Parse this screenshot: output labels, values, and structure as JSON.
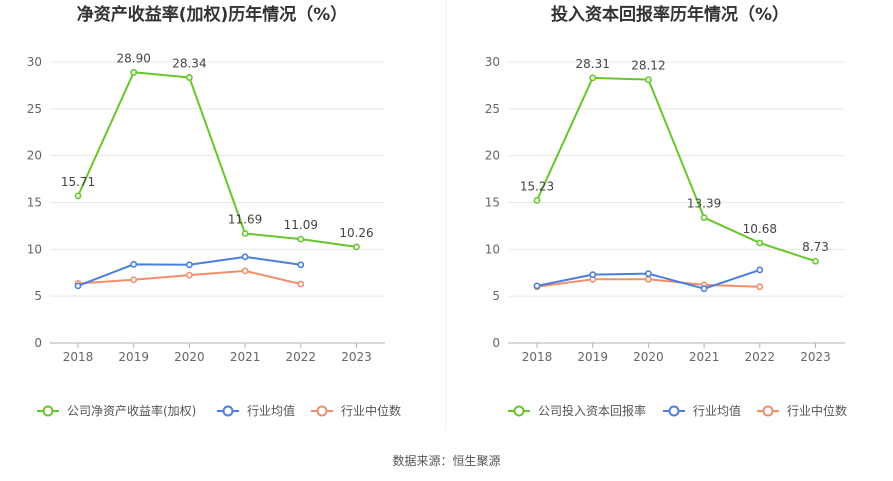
{
  "source_text": "数据来源：恒生聚源",
  "colors": {
    "company": "#66c72b",
    "avg": "#4a7fe0",
    "median": "#f0906a",
    "grid": "#e8e8e8",
    "axis": "#b3b3b3"
  },
  "chart_data": [
    {
      "type": "line",
      "title": "净资产收益率(加权)历年情况（%）",
      "categories": [
        "2018",
        "2019",
        "2020",
        "2021",
        "2022",
        "2023"
      ],
      "ylim": [
        0,
        30
      ],
      "yticks": [
        "0",
        "5",
        "10",
        "15",
        "20",
        "25",
        "30"
      ],
      "grid": true,
      "legend_position": "bottom",
      "series": [
        {
          "name": "公司净资产收益率(加权)",
          "values": [
            15.71,
            28.9,
            28.34,
            11.69,
            11.09,
            10.26
          ],
          "labels": [
            "15.71",
            "28.90",
            "28.34",
            "11.69",
            "11.09",
            "10.26"
          ]
        },
        {
          "name": "行业均值",
          "values": [
            6.1,
            8.4,
            8.35,
            9.2,
            8.35,
            null
          ]
        },
        {
          "name": "行业中位数",
          "values": [
            6.35,
            6.75,
            7.25,
            7.7,
            6.3,
            null
          ]
        }
      ]
    },
    {
      "type": "line",
      "title": "投入资本回报率历年情况（%）",
      "categories": [
        "2018",
        "2019",
        "2020",
        "2021",
        "2022",
        "2023"
      ],
      "ylim": [
        0,
        30
      ],
      "yticks": [
        "0",
        "5",
        "10",
        "15",
        "20",
        "25",
        "30"
      ],
      "grid": true,
      "legend_position": "bottom",
      "series": [
        {
          "name": "公司投入资本回报率",
          "values": [
            15.23,
            28.31,
            28.12,
            13.39,
            10.68,
            8.73
          ],
          "labels": [
            "15.23",
            "28.31",
            "28.12",
            "13.39",
            "10.68",
            "8.73"
          ]
        },
        {
          "name": "行业均值",
          "values": [
            6.1,
            7.3,
            7.4,
            5.8,
            7.8,
            null
          ]
        },
        {
          "name": "行业中位数",
          "values": [
            6.0,
            6.8,
            6.8,
            6.2,
            6.0,
            null
          ]
        }
      ]
    }
  ]
}
